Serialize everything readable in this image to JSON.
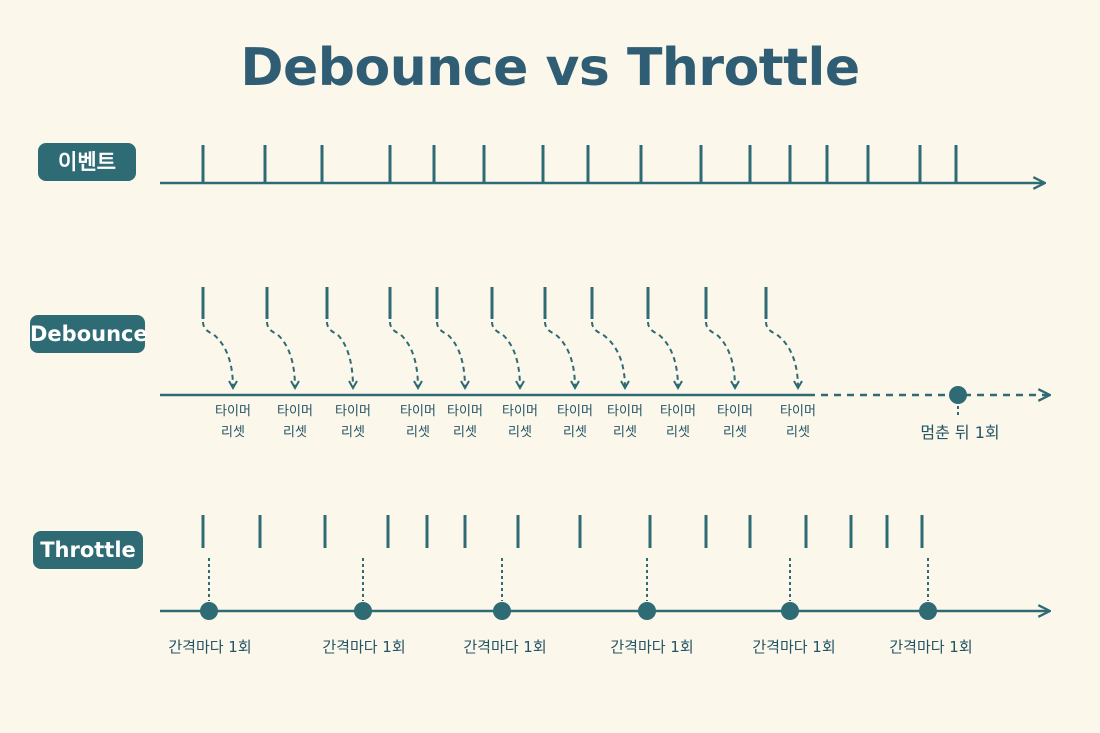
{
  "title": "Debounce vs Throttle",
  "rows": {
    "events": {
      "label": "이벤트"
    },
    "debounce": {
      "label": "Debounce",
      "reset_line1": "타이머",
      "reset_line2": "리셋",
      "final_label": "멈춘 뒤 1회"
    },
    "throttle": {
      "label": "Throttle",
      "fire_label": "간격마다 1회"
    }
  },
  "counts": {
    "events": 16,
    "debounce_resets": 11,
    "throttle_events": 15,
    "throttle_fires": 6
  },
  "colors": {
    "background": "#fbf7ea",
    "line": "#2f6b75",
    "label_bg": "#2f6b75",
    "title": "#2f5d73",
    "text": "#245466"
  }
}
